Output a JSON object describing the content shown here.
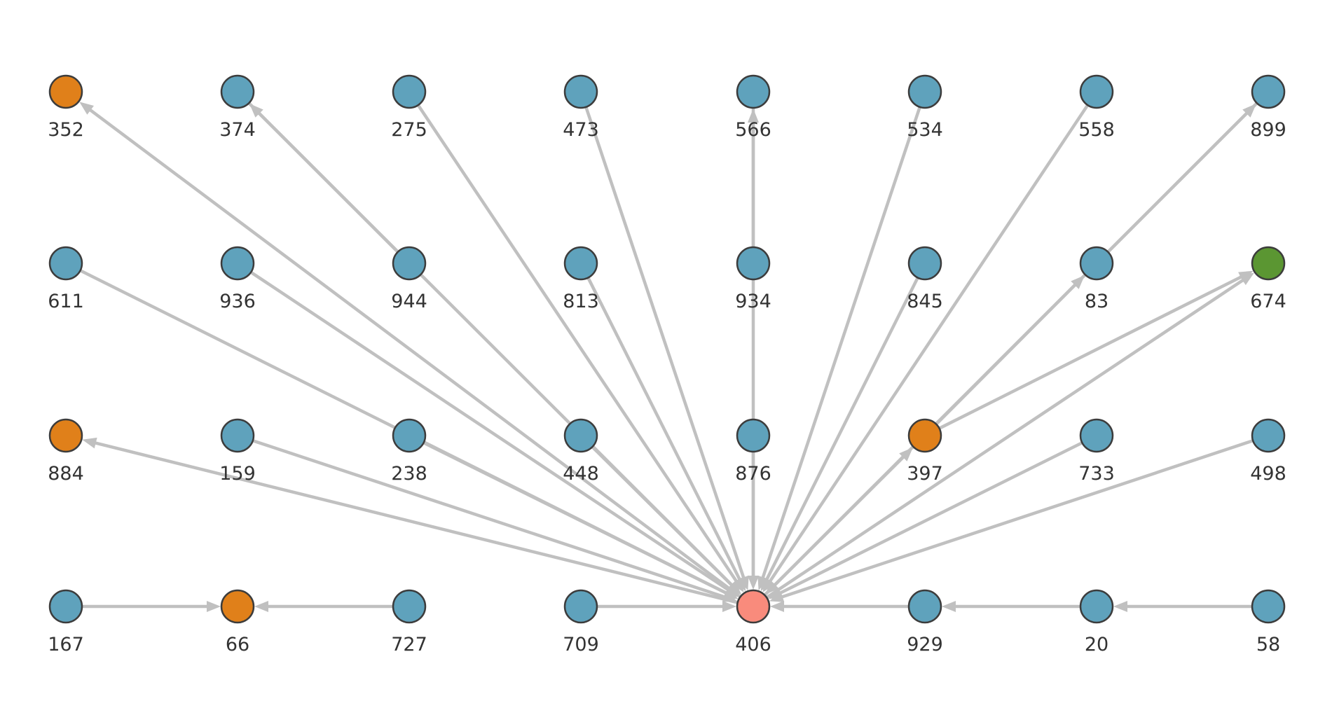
{
  "graph": {
    "colors": {
      "default": "#5fa2bc",
      "highlight": "#e0801a",
      "center": "#f98b7c",
      "special": "#5b9632",
      "edge": "#c0c0c0",
      "node_stroke": "#3c3c3c",
      "label": "#333333"
    },
    "nodes": [
      {
        "id": "352",
        "label": "352",
        "row": 0,
        "col": 0,
        "color": "highlight"
      },
      {
        "id": "374",
        "label": "374",
        "row": 0,
        "col": 1,
        "color": "default"
      },
      {
        "id": "275",
        "label": "275",
        "row": 0,
        "col": 2,
        "color": "default"
      },
      {
        "id": "473",
        "label": "473",
        "row": 0,
        "col": 3,
        "color": "default"
      },
      {
        "id": "566",
        "label": "566",
        "row": 0,
        "col": 4,
        "color": "default"
      },
      {
        "id": "534",
        "label": "534",
        "row": 0,
        "col": 5,
        "color": "default"
      },
      {
        "id": "558",
        "label": "558",
        "row": 0,
        "col": 6,
        "color": "default"
      },
      {
        "id": "899",
        "label": "899",
        "row": 0,
        "col": 7,
        "color": "default"
      },
      {
        "id": "611",
        "label": "611",
        "row": 1,
        "col": 0,
        "color": "default"
      },
      {
        "id": "936",
        "label": "936",
        "row": 1,
        "col": 1,
        "color": "default"
      },
      {
        "id": "944",
        "label": "944",
        "row": 1,
        "col": 2,
        "color": "default"
      },
      {
        "id": "813",
        "label": "813",
        "row": 1,
        "col": 3,
        "color": "default"
      },
      {
        "id": "934",
        "label": "934",
        "row": 1,
        "col": 4,
        "color": "default"
      },
      {
        "id": "845",
        "label": "845",
        "row": 1,
        "col": 5,
        "color": "default"
      },
      {
        "id": "83",
        "label": "83",
        "row": 1,
        "col": 6,
        "color": "default"
      },
      {
        "id": "674",
        "label": "674",
        "row": 1,
        "col": 7,
        "color": "special"
      },
      {
        "id": "884",
        "label": "884",
        "row": 2,
        "col": 0,
        "color": "highlight"
      },
      {
        "id": "159",
        "label": "159",
        "row": 2,
        "col": 1,
        "color": "default"
      },
      {
        "id": "238",
        "label": "238",
        "row": 2,
        "col": 2,
        "color": "default"
      },
      {
        "id": "448",
        "label": "448",
        "row": 2,
        "col": 3,
        "color": "default"
      },
      {
        "id": "876",
        "label": "876",
        "row": 2,
        "col": 4,
        "color": "default"
      },
      {
        "id": "397",
        "label": "397",
        "row": 2,
        "col": 5,
        "color": "highlight"
      },
      {
        "id": "733",
        "label": "733",
        "row": 2,
        "col": 6,
        "color": "default"
      },
      {
        "id": "498",
        "label": "498",
        "row": 2,
        "col": 7,
        "color": "default"
      },
      {
        "id": "167",
        "label": "167",
        "row": 3,
        "col": 0,
        "color": "default"
      },
      {
        "id": "66",
        "label": "66",
        "row": 3,
        "col": 1,
        "color": "highlight"
      },
      {
        "id": "727",
        "label": "727",
        "row": 3,
        "col": 2,
        "color": "default"
      },
      {
        "id": "709",
        "label": "709",
        "row": 3,
        "col": 3,
        "color": "default"
      },
      {
        "id": "406",
        "label": "406",
        "row": 3,
        "col": 4,
        "color": "center"
      },
      {
        "id": "929",
        "label": "929",
        "row": 3,
        "col": 5,
        "color": "default"
      },
      {
        "id": "20",
        "label": "20",
        "row": 3,
        "col": 6,
        "color": "default"
      },
      {
        "id": "58",
        "label": "58",
        "row": 3,
        "col": 7,
        "color": "default"
      }
    ],
    "edges": [
      {
        "from": "406",
        "to": "352"
      },
      {
        "from": "374",
        "to": "406"
      },
      {
        "from": "275",
        "to": "406"
      },
      {
        "from": "473",
        "to": "406"
      },
      {
        "from": "566",
        "to": "406"
      },
      {
        "from": "534",
        "to": "406"
      },
      {
        "from": "558",
        "to": "406"
      },
      {
        "from": "899",
        "to": "406"
      },
      {
        "from": "611",
        "to": "406"
      },
      {
        "from": "936",
        "to": "406"
      },
      {
        "from": "813",
        "to": "406"
      },
      {
        "from": "845",
        "to": "406"
      },
      {
        "from": "406",
        "to": "674"
      },
      {
        "from": "406",
        "to": "884"
      },
      {
        "from": "159",
        "to": "406"
      },
      {
        "from": "238",
        "to": "406"
      },
      {
        "from": "448",
        "to": "406"
      },
      {
        "from": "876",
        "to": "406"
      },
      {
        "from": "406",
        "to": "397"
      },
      {
        "from": "733",
        "to": "406"
      },
      {
        "from": "498",
        "to": "406"
      },
      {
        "from": "167",
        "to": "66"
      },
      {
        "from": "727",
        "to": "66"
      },
      {
        "from": "709",
        "to": "406"
      },
      {
        "from": "929",
        "to": "406"
      },
      {
        "from": "20",
        "to": "929"
      },
      {
        "from": "58",
        "to": "20"
      },
      {
        "from": "944",
        "to": "374"
      },
      {
        "from": "934",
        "to": "566"
      },
      {
        "from": "83",
        "to": "899"
      },
      {
        "from": "397",
        "to": "83"
      },
      {
        "from": "397",
        "to": "674"
      }
    ]
  }
}
